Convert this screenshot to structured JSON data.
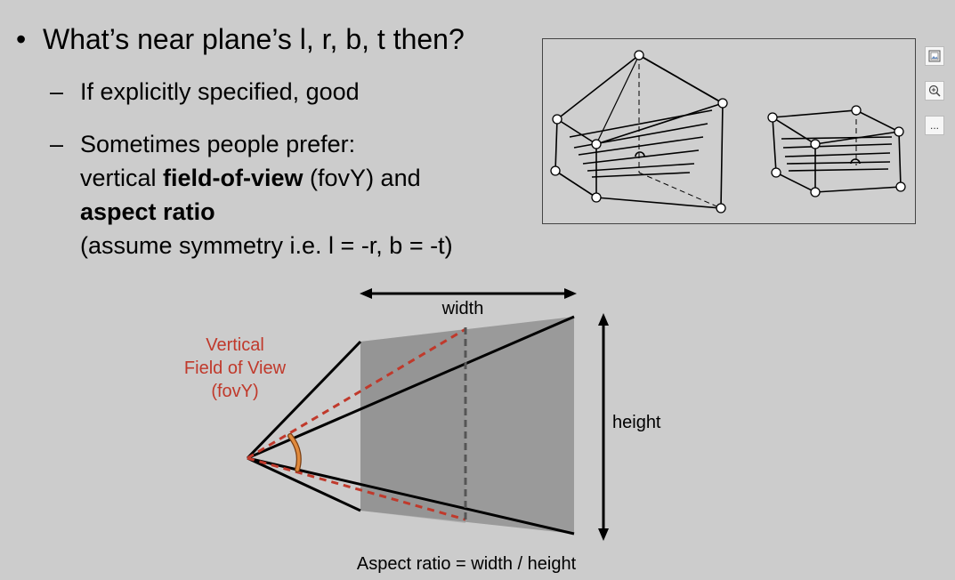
{
  "slide": {
    "bullet": "What’s near plane’s l, r, b, t then?",
    "sub1": "If explicitly specified, good",
    "sub2_line1": "Sometimes people prefer:",
    "sub2_line2_pre": "vertical ",
    "sub2_line2_bold": "field-of-view",
    "sub2_line2_post": " (fovY) and",
    "sub2_line3_bold": "aspect ratio",
    "sub2_line4": "(assume symmetry i.e. l = -r, b = -t)"
  },
  "diagram": {
    "width_label": "width",
    "height_label": "height",
    "fov_label_1": "Vertical",
    "fov_label_2": "Field of View",
    "fov_label_3": "(fovY)",
    "caption": "Aspect ratio = width / height",
    "fov_color": "#c0392b",
    "arc_color": "#e08a3c"
  },
  "toolbar": {
    "buttons": [
      "image-icon",
      "zoom-in-icon",
      "more-icon"
    ],
    "more_label": "..."
  }
}
